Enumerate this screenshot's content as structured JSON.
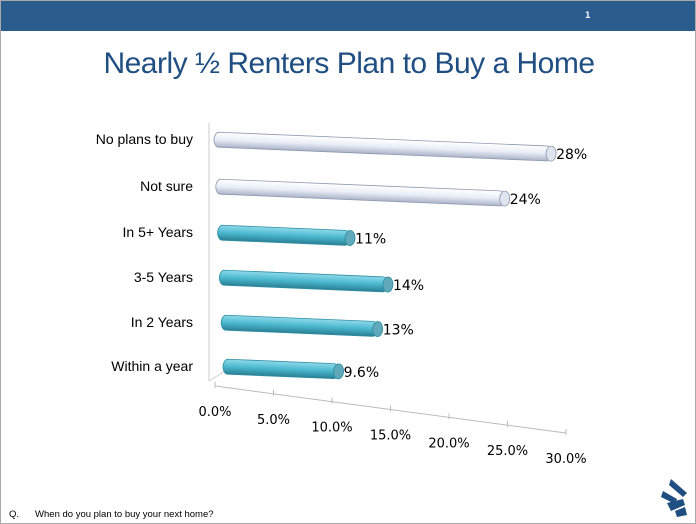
{
  "header": {
    "page_number": "1"
  },
  "title": "Nearly ½ Renters Plan to Buy a Home",
  "footer": {
    "q_label": "Q.",
    "question": "When do you plan to buy your next home?"
  },
  "chart_data": {
    "type": "bar",
    "orientation": "horizontal",
    "style": "3d-cylinder",
    "title": "",
    "categories": [
      "No plans to buy",
      "Not sure",
      "In 5+ Years",
      "3-5 Years",
      "In 2 Years",
      "Within a year"
    ],
    "values": [
      28,
      24,
      11,
      14,
      13,
      9.6
    ],
    "data_labels": [
      "28%",
      "24%",
      "11%",
      "14%",
      "13%",
      "9.6%"
    ],
    "colors": [
      "#e6ebf4",
      "#e6ebf4",
      "#4bb8cf",
      "#4bb8cf",
      "#4bb8cf",
      "#4bb8cf"
    ],
    "xlim": [
      0,
      30
    ],
    "xticks": [
      "0.0%",
      "5.0%",
      "10.0%",
      "15.0%",
      "20.0%",
      "25.0%",
      "30.0%"
    ],
    "grid": false,
    "legend": "none"
  }
}
